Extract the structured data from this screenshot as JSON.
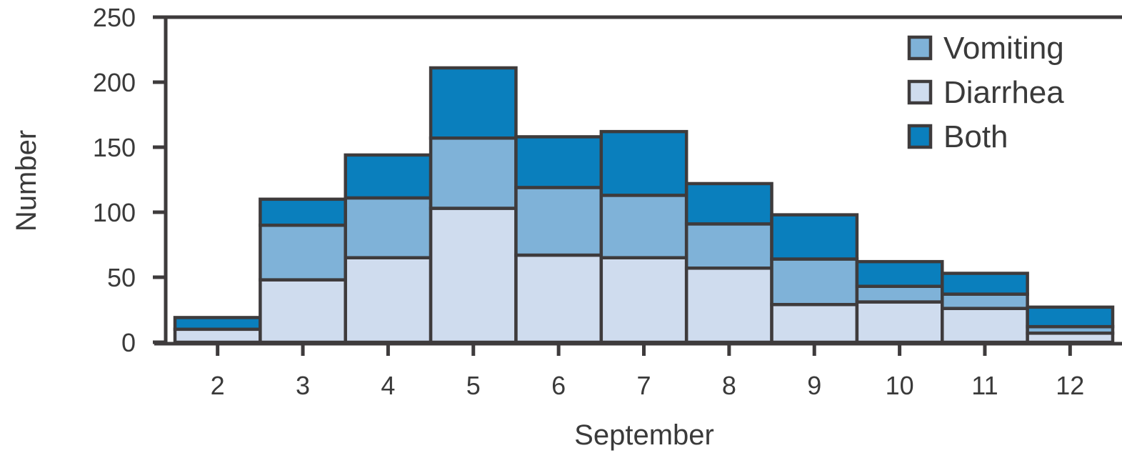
{
  "chart_data": {
    "type": "bar",
    "stacked": true,
    "title": "",
    "xlabel": "September",
    "ylabel": "Number",
    "ylim": [
      0,
      250
    ],
    "yticks": [
      0,
      50,
      100,
      150,
      200,
      250
    ],
    "categories": [
      "2",
      "3",
      "4",
      "5",
      "6",
      "7",
      "8",
      "9",
      "10",
      "11",
      "12"
    ],
    "series": [
      {
        "name": "Diarrhea",
        "color": "#cfdcee",
        "values": [
          10,
          48,
          65,
          103,
          67,
          65,
          57,
          29,
          31,
          26,
          7
        ]
      },
      {
        "name": "Vomiting",
        "color": "#7fb2d8",
        "values": [
          0,
          42,
          46,
          54,
          52,
          48,
          34,
          35,
          12,
          11,
          5
        ]
      },
      {
        "name": "Both",
        "color": "#0a7fbd",
        "values": [
          9,
          20,
          33,
          54,
          39,
          49,
          31,
          34,
          19,
          16,
          15
        ]
      }
    ],
    "legend_order": [
      "Vomiting",
      "Diarrhea",
      "Both"
    ],
    "legend_position": "top-right",
    "grid": false,
    "axis_color": "#3e3b3c"
  }
}
